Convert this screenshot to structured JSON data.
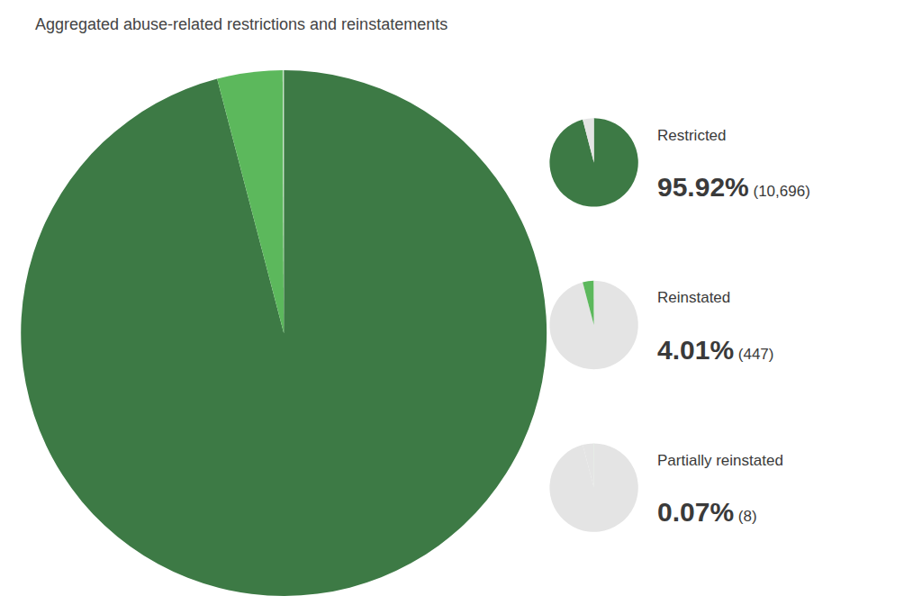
{
  "chart_data": {
    "type": "pie",
    "title": "Aggregated abuse-related restrictions and reinstatements",
    "categories": [
      "Restricted",
      "Reinstated",
      "Partially reinstated"
    ],
    "values": [
      95.92,
      4.01,
      0.07
    ],
    "value_labels": [
      "95.92%",
      "4.01%",
      "0.07%"
    ],
    "count_labels": [
      "(10,696)",
      "(447)",
      "(8)"
    ],
    "colors": [
      "#3d7a45",
      "#5cb85c",
      "#c8e6c9"
    ],
    "legend": "right"
  }
}
